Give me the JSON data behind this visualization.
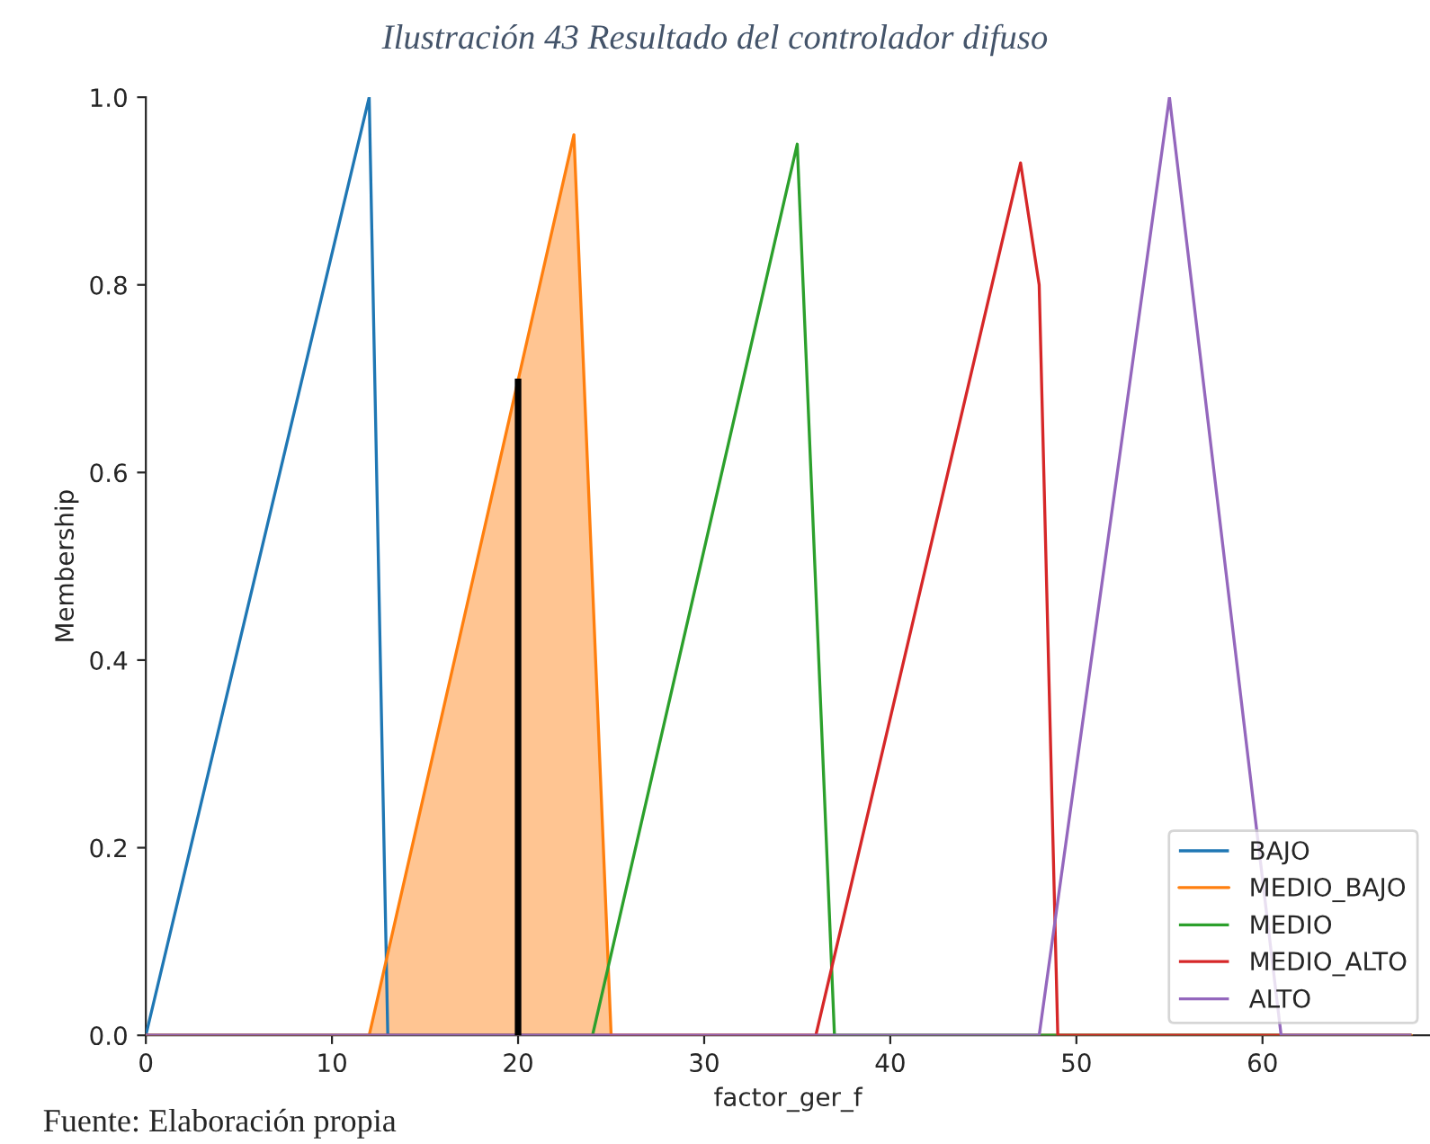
{
  "chart_data": {
    "type": "line",
    "title": "Ilustración 43 Resultado del controlador difuso",
    "xlabel": "factor_ger_f",
    "ylabel": "Membership",
    "xlim": [
      0,
      69
    ],
    "xticks": [
      0,
      10,
      20,
      30,
      40,
      50,
      60
    ],
    "ylim": [
      0,
      1.0
    ],
    "yticks": [
      {
        "value": 0,
        "label": "0.0"
      },
      0.2,
      0.4,
      0.6,
      0.8,
      {
        "value": 1,
        "label": "1.0"
      }
    ],
    "series": [
      {
        "name": "BAJO",
        "color": "#1f77b4",
        "x": [
          0,
          12,
          13,
          68
        ],
        "values": [
          0,
          1.0,
          0,
          0
        ]
      },
      {
        "name": "MEDIO_BAJO",
        "type": "area",
        "color": "#ff7f0e",
        "x": [
          0,
          12,
          23,
          25,
          68
        ],
        "values": [
          0,
          0,
          0.96,
          0,
          0
        ]
      },
      {
        "name": "MEDIO",
        "color": "#2ca02c",
        "x": [
          0,
          24,
          35,
          37,
          68
        ],
        "values": [
          0,
          0,
          0.95,
          0,
          0
        ]
      },
      {
        "name": "MEDIO_ALTO",
        "color": "#d62728",
        "x": [
          0,
          36,
          47,
          48,
          49,
          68
        ],
        "values": [
          0,
          0,
          0.93,
          0.8,
          0,
          0
        ]
      },
      {
        "name": "ALTO",
        "color": "#9467bd",
        "x": [
          0,
          48,
          55,
          61,
          68
        ],
        "values": [
          0,
          0,
          1.0,
          0,
          0
        ]
      },
      {
        "type": "bar",
        "color": "#000000",
        "x": [
          20
        ],
        "values": [
          0.7
        ]
      }
    ],
    "annotations": [
      "Fuente: Elaboración propia"
    ],
    "legend": "bottom right",
    "grid": false
  }
}
